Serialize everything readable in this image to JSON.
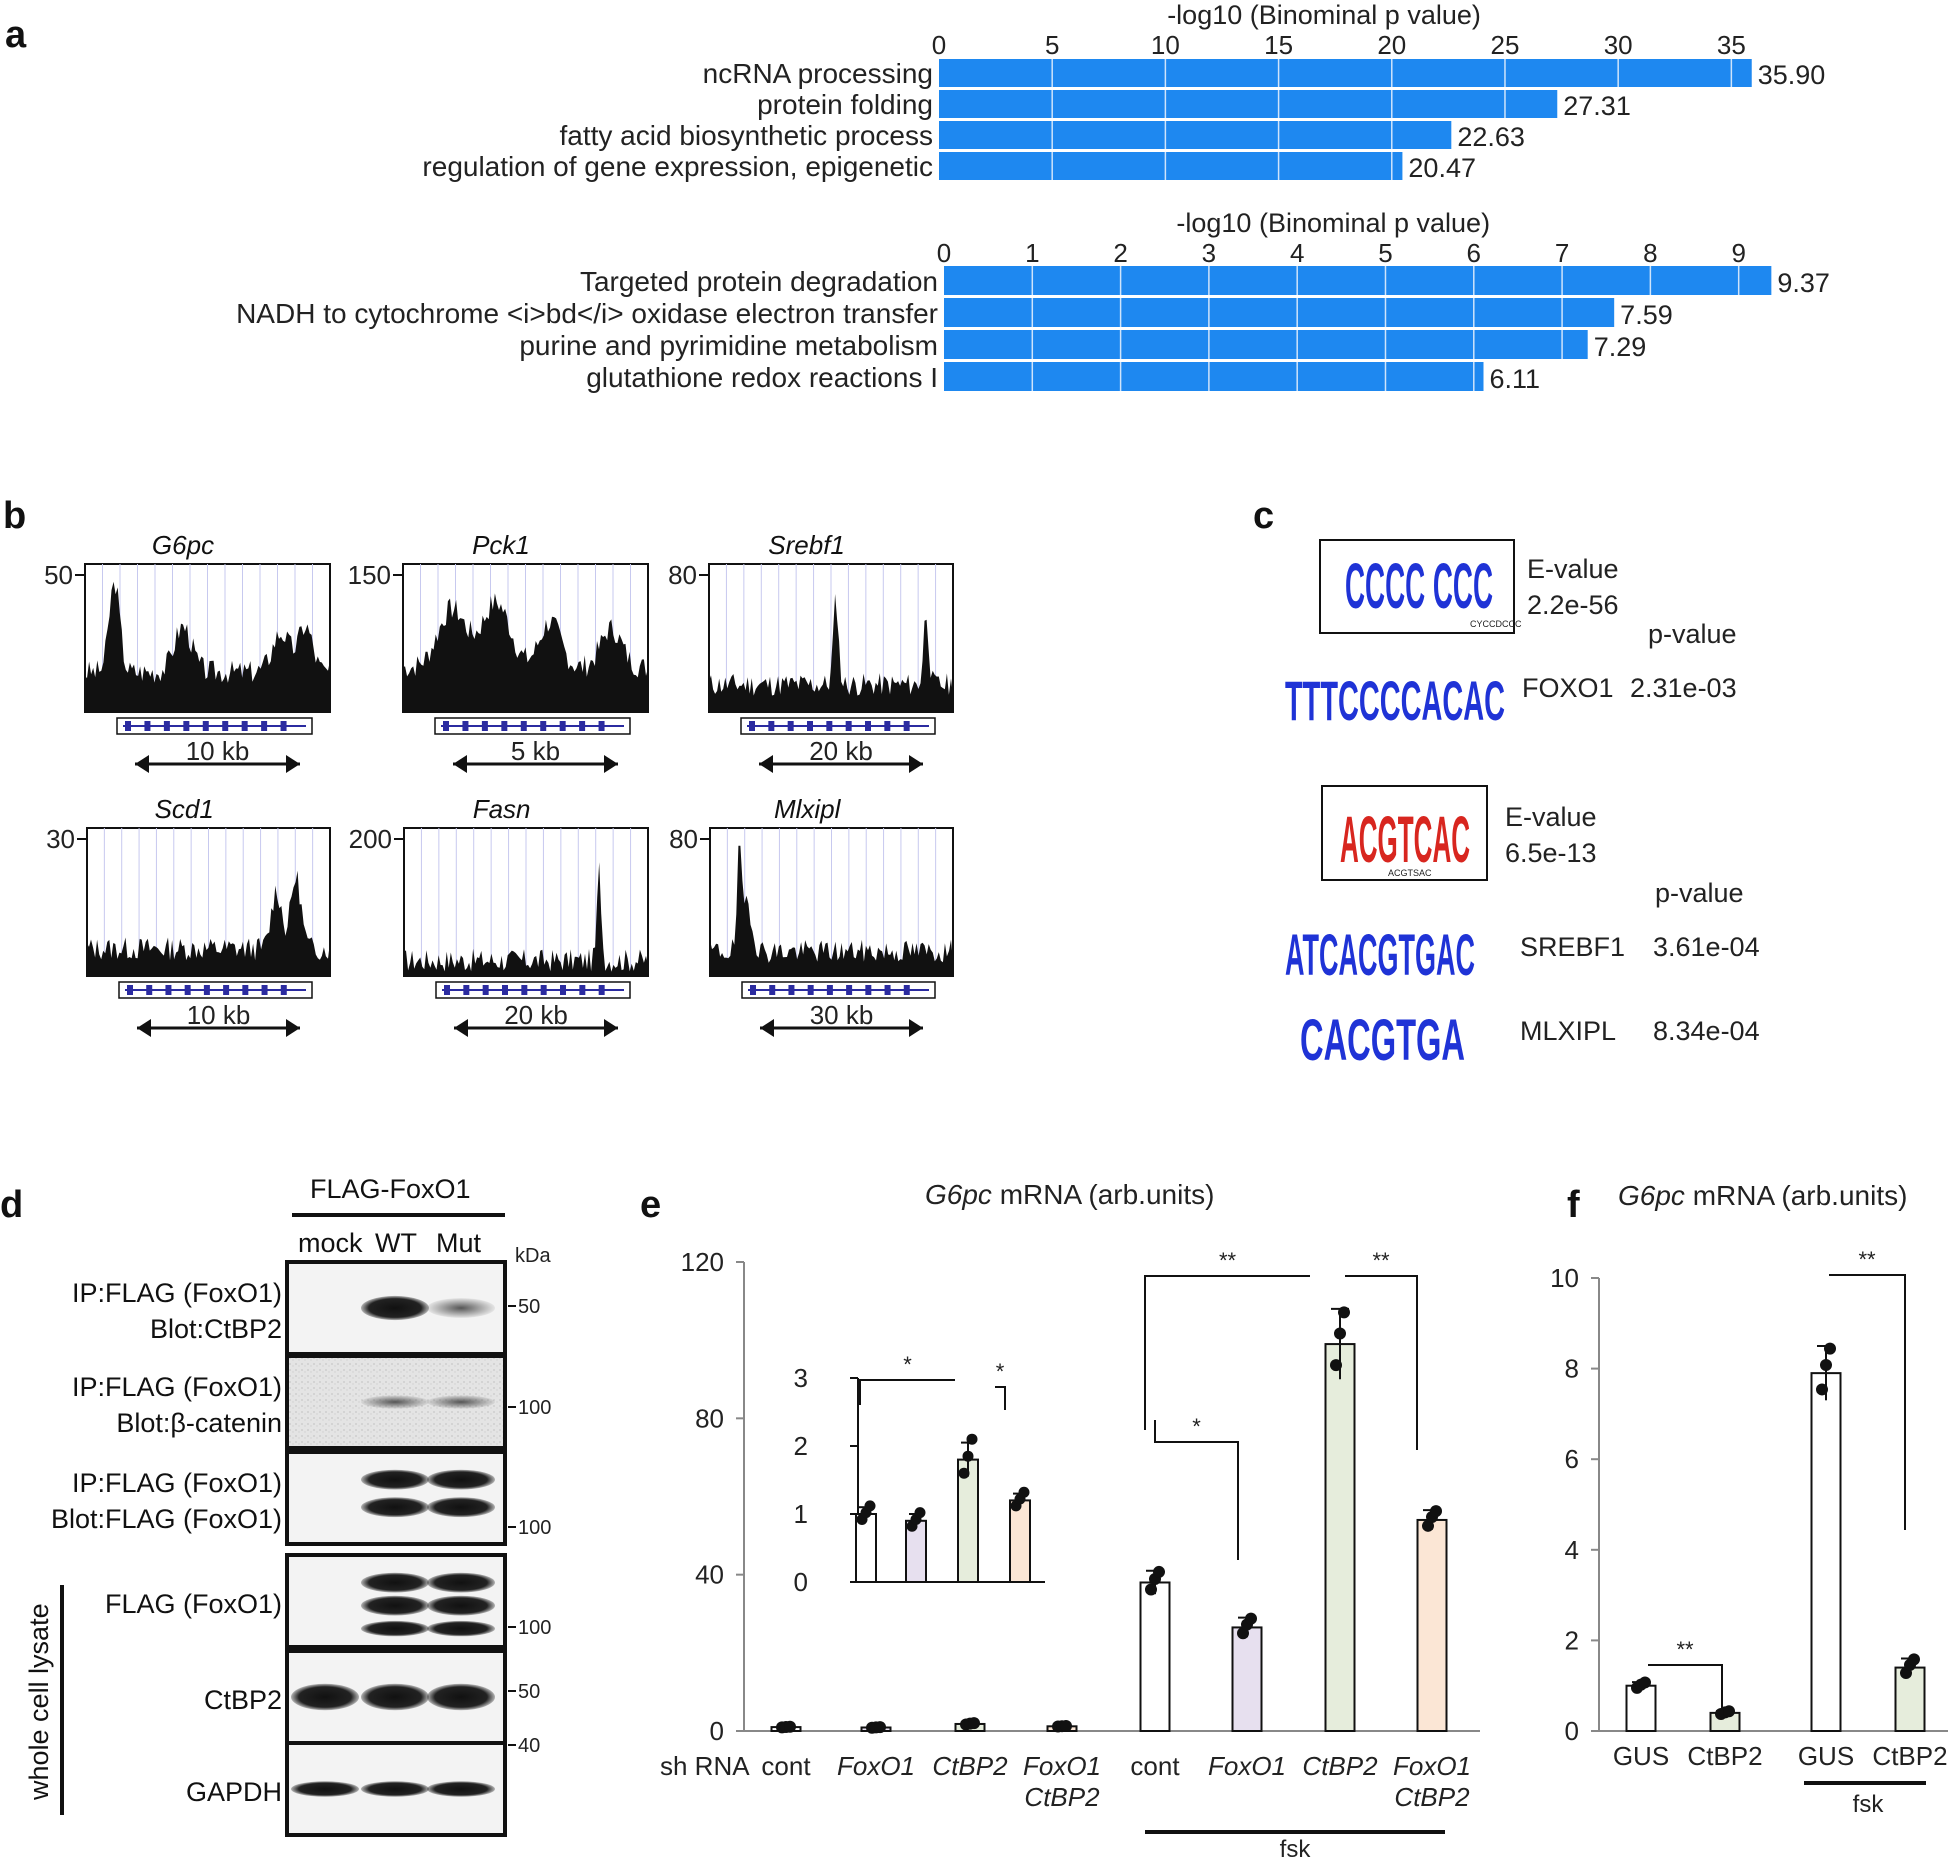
{
  "panel_labels": {
    "a": "a",
    "b": "b",
    "c": "c",
    "d": "d",
    "e": "e",
    "f": "f"
  },
  "chart_data": [
    {
      "id": "a1",
      "type": "bar",
      "orientation": "horizontal",
      "title": "-log10 (Binominal p value)",
      "categories": [
        "ncRNA processing",
        "protein folding",
        "fatty acid biosynthetic process",
        "regulation of gene expression, epigenetic"
      ],
      "values": [
        35.9,
        27.31,
        22.63,
        20.47
      ],
      "value_labels": [
        "35.90",
        "27.31",
        "22.63",
        "20.47"
      ],
      "xlim": [
        0,
        36
      ],
      "ticks": [
        "0",
        "5",
        "10",
        "15",
        "20",
        "25",
        "30",
        "35"
      ],
      "color": "#1e88f0"
    },
    {
      "id": "a2",
      "type": "bar",
      "orientation": "horizontal",
      "title": "-log10 (Binominal p value)",
      "categories": [
        "Targeted protein degradation",
        "NADH to cytochrome <i>bd</i> oxidase electron transfer",
        "purine and pyrimidine metabolism",
        "glutathione redox reactions I"
      ],
      "values": [
        9.37,
        7.59,
        7.29,
        6.11
      ],
      "value_labels": [
        "9.37",
        "7.59",
        "7.29",
        "6.11"
      ],
      "xlim": [
        0,
        9.4
      ],
      "ticks": [
        "0",
        "1",
        "2",
        "3",
        "4",
        "5",
        "6",
        "7",
        "8",
        "9"
      ],
      "color": "#1e88f0"
    },
    {
      "id": "e",
      "type": "bar",
      "title_gene": "G6pc",
      "title_rest": " mRNA (arb.units)",
      "ylim": [
        0,
        120
      ],
      "yticks": [
        "0",
        "40",
        "80",
        "120"
      ],
      "categories": [
        "cont",
        "FoxO1",
        "CtBP2",
        "FoxO1 CtBP2",
        "cont",
        "FoxO1",
        "CtBP2",
        "FoxO1 CtBP2"
      ],
      "values": [
        1.0,
        0.9,
        1.8,
        1.2,
        38,
        26.5,
        99,
        54
      ],
      "errors": [
        0.1,
        0.1,
        0.25,
        0.1,
        3,
        2.5,
        9,
        2.5
      ],
      "row_label": "sh RNA",
      "group_label": "fsk",
      "significance": [
        "**",
        "**",
        "*"
      ],
      "inset": {
        "ylim": [
          0,
          3
        ],
        "yticks": [
          "0",
          "1",
          "2",
          "3"
        ],
        "values": [
          1.0,
          0.9,
          1.8,
          1.2
        ],
        "errors": [
          0.1,
          0.1,
          0.25,
          0.1
        ],
        "significance": [
          "*",
          "*"
        ]
      }
    },
    {
      "id": "f",
      "type": "bar",
      "title_gene": "G6pc",
      "title_rest": " mRNA (arb.units)",
      "ylim": [
        0,
        10
      ],
      "yticks": [
        "0",
        "2",
        "4",
        "6",
        "8",
        "10"
      ],
      "categories": [
        "GUS",
        "CtBP2",
        "GUS",
        "CtBP2"
      ],
      "values": [
        1.0,
        0.4,
        7.9,
        1.4
      ],
      "errors": [
        0.08,
        0.04,
        0.6,
        0.2
      ],
      "group_label": "fsk",
      "significance": [
        "**",
        "**"
      ]
    }
  ],
  "panel_b": {
    "tracks": [
      {
        "gene": "G6pc",
        "ymax": "50",
        "scale": "10 kb"
      },
      {
        "gene": "Pck1",
        "ymax": "150",
        "scale": "5 kb"
      },
      {
        "gene": "Srebf1",
        "ymax": "80",
        "scale": "20 kb"
      },
      {
        "gene": "Scd1",
        "ymax": "30",
        "scale": "10 kb"
      },
      {
        "gene": "Fasn",
        "ymax": "200",
        "scale": "20 kb"
      },
      {
        "gene": "Mlxipl",
        "ymax": "80",
        "scale": "30 kb"
      }
    ]
  },
  "panel_c": {
    "motif1": {
      "logo": "CCCC CCC",
      "caption": "CYCCDCCC",
      "evalue_label": "E-value",
      "evalue": "2.2e-56",
      "pvalue_header": "p-value",
      "match": {
        "logo": "TTTCCCCACAC",
        "name": "FOXO1",
        "pvalue": "2.31e-03"
      }
    },
    "motif2": {
      "logo": "ACGTCAC",
      "caption": "ACGTSAC",
      "evalue_label": "E-value",
      "evalue": "6.5e-13",
      "pvalue_header": "p-value",
      "matches": [
        {
          "logo": "ATCACGTGAC",
          "name": "SREBF1",
          "pvalue": "3.61e-04"
        },
        {
          "logo": "CACGTGA",
          "name": "MLXIPL",
          "pvalue": "8.34e-04"
        }
      ]
    }
  },
  "panel_d": {
    "header": "FLAG-FoxO1",
    "lanes": [
      "mock",
      "WT",
      "Mut"
    ],
    "kda": "kDa",
    "blots": [
      {
        "l1": "IP:FLAG (FoxO1)",
        "l2": "Blot:CtBP2",
        "marker": "50"
      },
      {
        "l1": "IP:FLAG (FoxO1)",
        "l2": "Blot:β-catenin",
        "marker": "100"
      },
      {
        "l1": "IP:FLAG (FoxO1)",
        "l2": "Blot:FLAG (FoxO1)",
        "marker": "100"
      },
      {
        "l1": "FLAG (FoxO1)",
        "l2": "",
        "marker": "100"
      },
      {
        "l1": "CtBP2",
        "l2": "",
        "marker": "50"
      },
      {
        "l1": "GAPDH",
        "l2": "",
        "marker": "40"
      }
    ],
    "side_label": "whole cell lysate"
  }
}
